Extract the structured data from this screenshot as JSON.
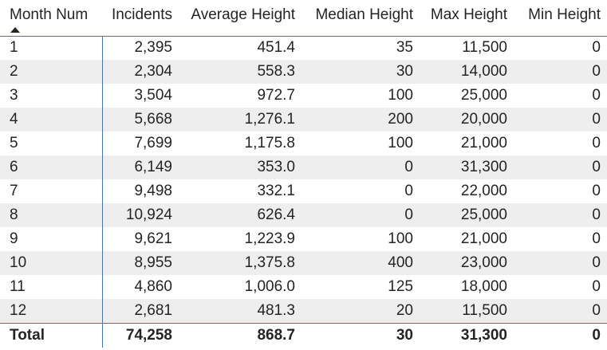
{
  "table": {
    "columns": [
      "Month Num",
      "Incidents",
      "Average Height",
      "Median Height",
      "Max Height",
      "Min Height"
    ],
    "sort": {
      "column": "Month Num",
      "direction": "ascending",
      "icon": "sort-ascending-icon"
    },
    "rows": [
      [
        "1",
        "2,395",
        "451.4",
        "35",
        "11,500",
        "0"
      ],
      [
        "2",
        "2,304",
        "558.3",
        "30",
        "14,000",
        "0"
      ],
      [
        "3",
        "3,504",
        "972.7",
        "100",
        "25,000",
        "0"
      ],
      [
        "4",
        "5,668",
        "1,276.1",
        "200",
        "20,000",
        "0"
      ],
      [
        "5",
        "7,699",
        "1,175.8",
        "100",
        "21,000",
        "0"
      ],
      [
        "6",
        "6,149",
        "353.0",
        "0",
        "31,300",
        "0"
      ],
      [
        "7",
        "9,498",
        "332.1",
        "0",
        "22,000",
        "0"
      ],
      [
        "8",
        "10,924",
        "626.4",
        "0",
        "25,000",
        "0"
      ],
      [
        "9",
        "9,621",
        "1,223.9",
        "100",
        "21,000",
        "0"
      ],
      [
        "10",
        "8,955",
        "1,375.8",
        "400",
        "23,000",
        "0"
      ],
      [
        "11",
        "4,860",
        "1,006.0",
        "125",
        "18,000",
        "0"
      ],
      [
        "12",
        "2,681",
        "481.3",
        "20",
        "11,500",
        "0"
      ]
    ],
    "total": [
      "Total",
      "74,258",
      "868.7",
      "30",
      "31,300",
      "0"
    ]
  },
  "colors": {
    "accent": "#2b7bd4",
    "stripe": "#eeeeee",
    "text": "#252423"
  }
}
